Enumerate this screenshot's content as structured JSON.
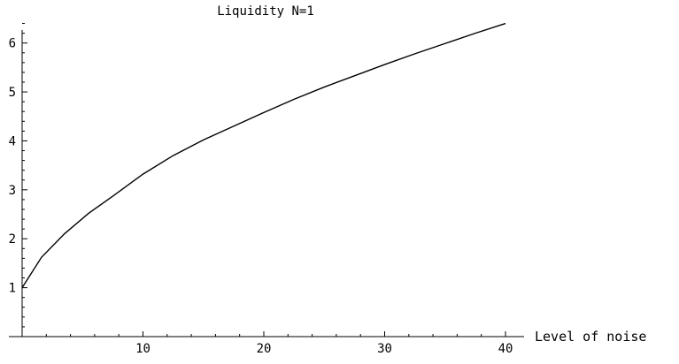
{
  "chart_data": {
    "type": "line",
    "title": "Liquidity N=1",
    "xlabel": "Level of noise",
    "ylabel": "",
    "xlim": [
      0,
      40
    ],
    "ylim": [
      0,
      6.5
    ],
    "x_ticks": [
      10,
      20,
      30,
      40
    ],
    "y_ticks": [
      1,
      2,
      3,
      4,
      5,
      6
    ],
    "grid": false,
    "legend": "none",
    "line_color": "#000000",
    "series": [
      {
        "x": [
          0,
          1.6,
          3.5,
          5.5,
          7.5,
          10,
          12.5,
          15,
          17.5,
          20,
          22.5,
          25,
          27.5,
          30,
          32.5,
          35,
          37.5,
          40
        ],
        "y": [
          1.0,
          1.62,
          2.1,
          2.52,
          2.87,
          3.32,
          3.7,
          4.02,
          4.3,
          4.58,
          4.85,
          5.1,
          5.33,
          5.56,
          5.78,
          5.99,
          6.2,
          6.4
        ]
      }
    ]
  }
}
